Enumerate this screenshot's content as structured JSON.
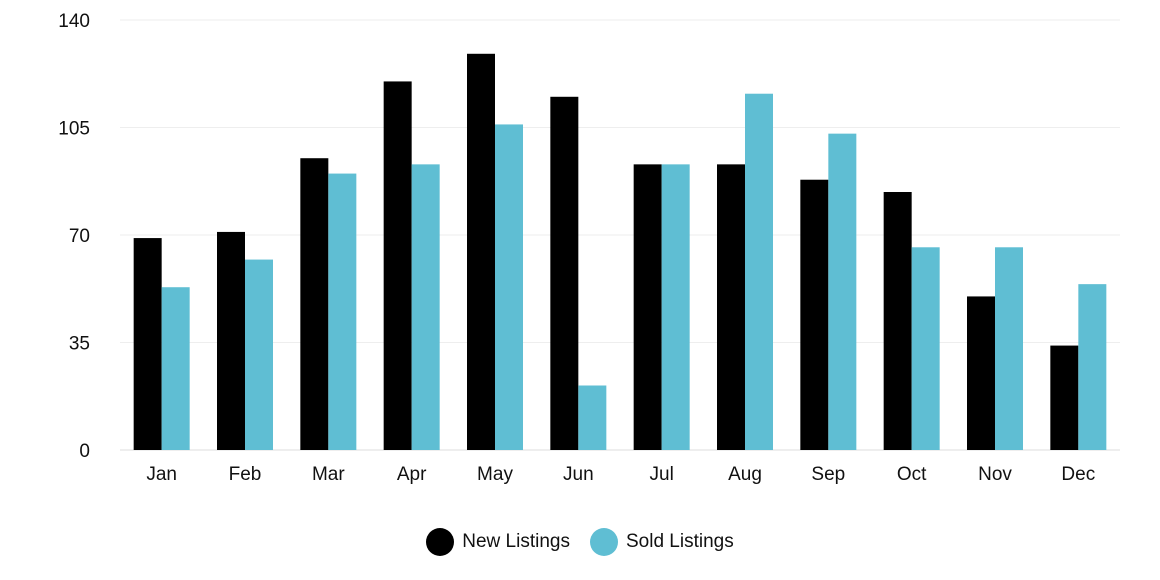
{
  "chart_data": {
    "type": "bar",
    "categories": [
      "Jan",
      "Feb",
      "Mar",
      "Apr",
      "May",
      "Jun",
      "Jul",
      "Aug",
      "Sep",
      "Oct",
      "Nov",
      "Dec"
    ],
    "series": [
      {
        "name": "New Listings",
        "color": "#000000",
        "values": [
          69,
          71,
          95,
          120,
          129,
          115,
          93,
          93,
          88,
          84,
          50,
          34
        ]
      },
      {
        "name": "Sold Listings",
        "color": "#5fbed3",
        "values": [
          53,
          62,
          90,
          93,
          106,
          21,
          93,
          116,
          103,
          66,
          66,
          54
        ]
      }
    ],
    "yticks": [
      0,
      35,
      70,
      105,
      140
    ],
    "ylim": [
      0,
      140
    ],
    "grid": true,
    "legend_position": "bottom-center"
  }
}
